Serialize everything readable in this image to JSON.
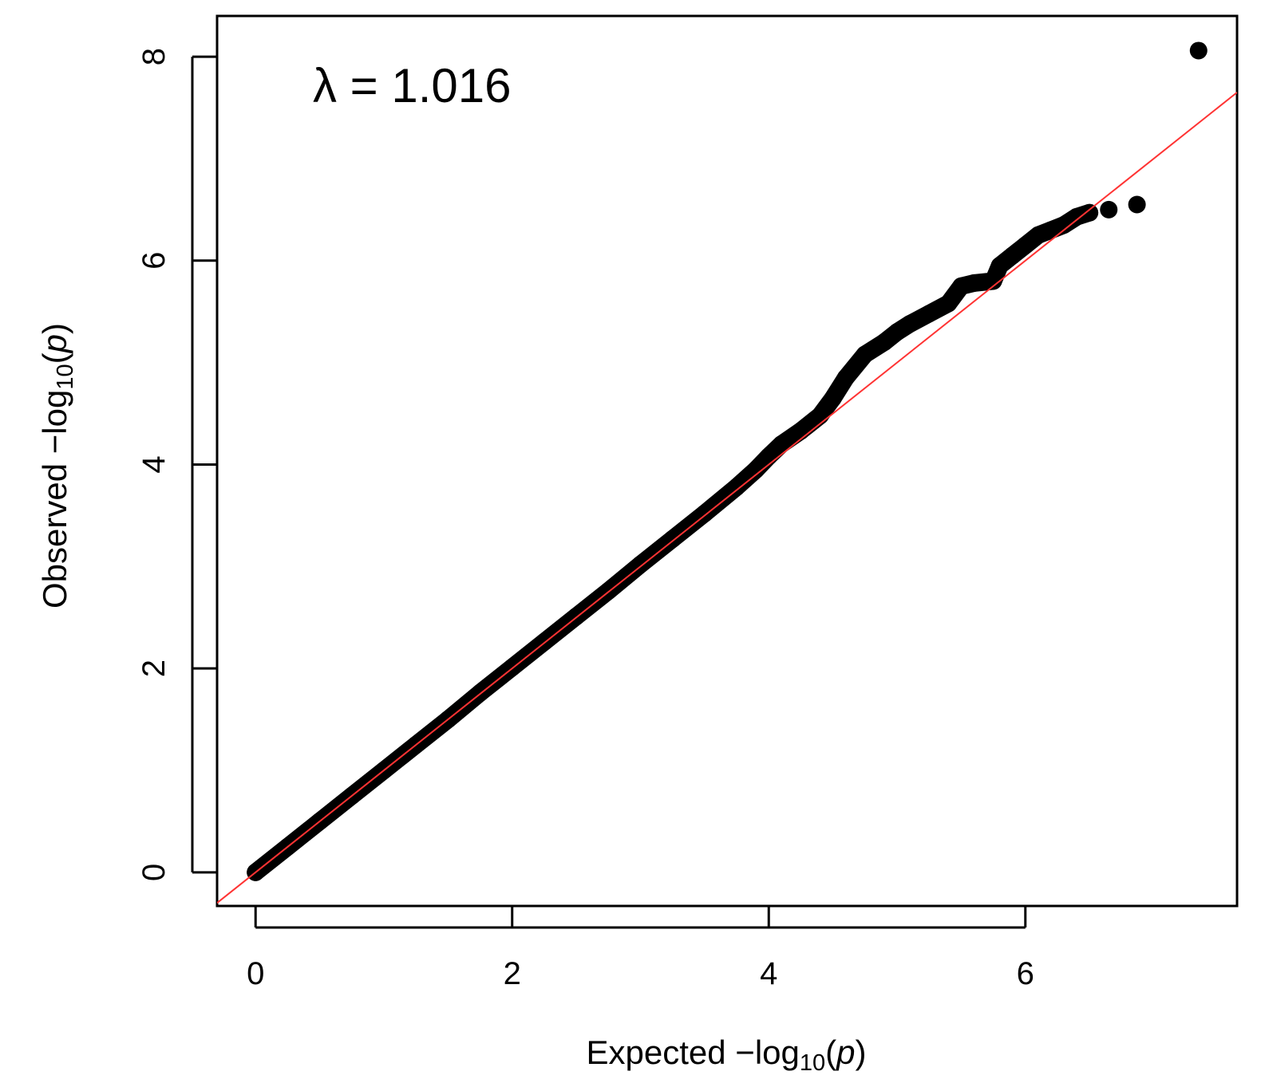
{
  "chart_data": {
    "type": "scatter",
    "title": "",
    "xlabel": "Expected −log10(p)",
    "ylabel": "Observed −log10(p)",
    "xlabel_parts": {
      "pre": "Expected  −log",
      "sub": "10",
      "open": "(",
      "var": "p",
      "close": ")"
    },
    "ylabel_parts": {
      "pre": "Observed  −log",
      "sub": "10",
      "open": "(",
      "var": "p",
      "close": ")"
    },
    "annotation": "λ = 1.016",
    "x_ticks": [
      "0",
      "2",
      "4",
      "6"
    ],
    "y_ticks": [
      "0",
      "2",
      "4",
      "6",
      "8"
    ],
    "xlim": [
      -0.3,
      7.65
    ],
    "ylim": [
      -0.33,
      8.4
    ],
    "grid": false,
    "colors": {
      "points": "#000000",
      "reference_line": "#ff3333"
    },
    "reference_line": {
      "x": [
        -0.3,
        7.65
      ],
      "y": [
        -0.3,
        7.65
      ]
    },
    "series": [
      {
        "x": [
          0.0,
          0.25,
          0.5,
          0.75,
          1.0,
          1.25,
          1.5,
          1.75,
          2.0,
          2.25,
          2.5,
          2.75,
          3.0,
          3.25,
          3.5,
          3.75,
          3.9,
          4.0,
          4.1,
          4.25,
          4.4,
          4.5,
          4.6,
          4.75,
          4.9,
          5.0,
          5.1,
          5.25,
          5.4,
          5.5,
          5.6,
          5.75,
          5.8,
          5.9,
          6.0,
          6.1,
          6.2,
          6.3,
          6.4,
          6.5,
          6.65,
          6.87,
          7.35
        ],
        "y": [
          0.0,
          0.25,
          0.5,
          0.75,
          1.0,
          1.25,
          1.5,
          1.76,
          2.01,
          2.26,
          2.51,
          2.76,
          3.02,
          3.27,
          3.52,
          3.78,
          3.95,
          4.08,
          4.2,
          4.33,
          4.48,
          4.65,
          4.85,
          5.08,
          5.2,
          5.3,
          5.38,
          5.48,
          5.58,
          5.75,
          5.78,
          5.8,
          5.95,
          6.05,
          6.15,
          6.25,
          6.3,
          6.35,
          6.43,
          6.47,
          6.5,
          6.55,
          8.06
        ]
      }
    ]
  }
}
